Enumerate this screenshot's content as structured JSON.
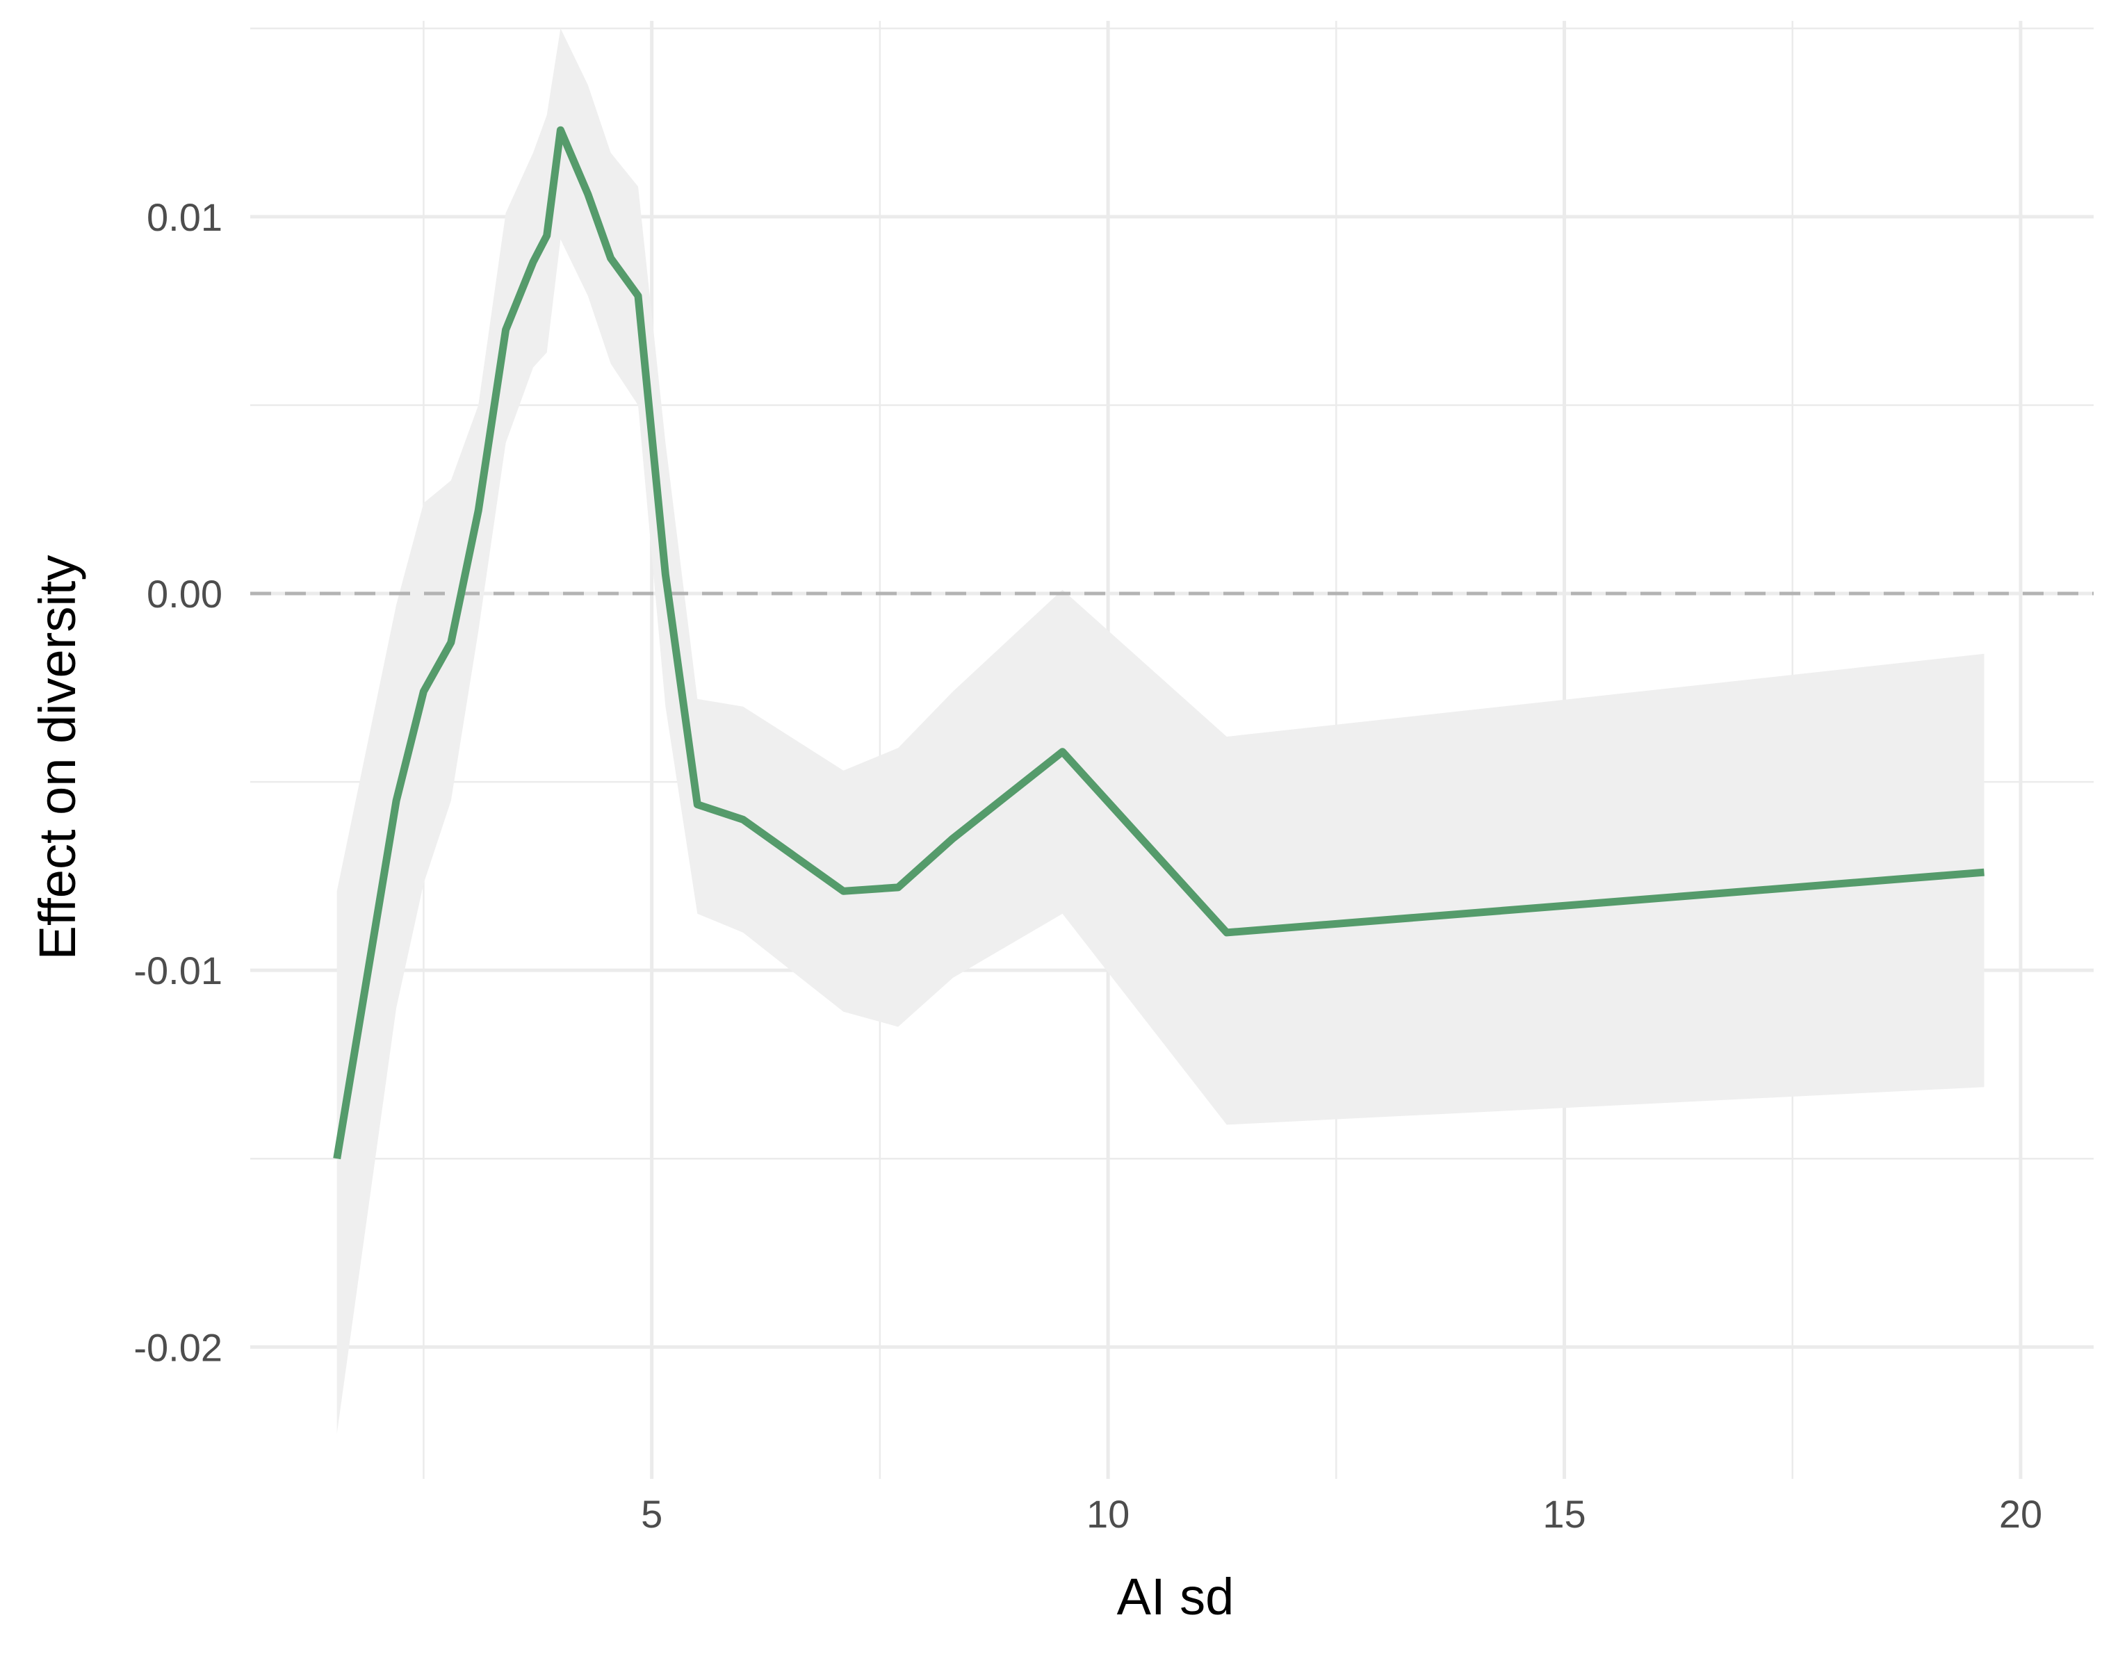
{
  "chart_data": {
    "type": "line",
    "xlabel": "AI sd",
    "ylabel": "Effect on diversity",
    "xlim": [
      0.6,
      20.8
    ],
    "ylim": [
      -0.0235,
      0.0152
    ],
    "x_ticks": [
      5,
      10,
      15,
      20
    ],
    "x_minor_ticks": [
      2.5,
      7.5,
      12.5,
      17.5
    ],
    "y_ticks": [
      -0.02,
      -0.01,
      0.0,
      0.01
    ],
    "y_tick_labels": [
      "-0.02",
      "-0.01",
      "0.00",
      "0.01"
    ],
    "y_minor_ticks": [
      -0.015,
      -0.005,
      0.005,
      0.015
    ],
    "grid": true,
    "reference_line": {
      "y": 0.0,
      "style": "dashed",
      "color": "#b3b3b3"
    },
    "series": [
      {
        "color": "#559b6b",
        "ribbon_color": "#efefef",
        "points": [
          {
            "x": 1.55,
            "y": -0.015,
            "lower": -0.0223,
            "upper": -0.0079
          },
          {
            "x": 2.2,
            "y": -0.0055,
            "lower": -0.011,
            "upper": -0.0003
          },
          {
            "x": 2.5,
            "y": -0.0026,
            "lower": -0.0077,
            "upper": 0.0024
          },
          {
            "x": 2.8,
            "y": -0.0013,
            "lower": -0.0055,
            "upper": 0.003
          },
          {
            "x": 3.1,
            "y": 0.0022,
            "lower": -0.001,
            "upper": 0.005
          },
          {
            "x": 3.4,
            "y": 0.007,
            "lower": 0.004,
            "upper": 0.0101
          },
          {
            "x": 3.7,
            "y": 0.0088,
            "lower": 0.006,
            "upper": 0.0117
          },
          {
            "x": 3.85,
            "y": 0.0095,
            "lower": 0.0064,
            "upper": 0.0127
          },
          {
            "x": 4.0,
            "y": 0.0123,
            "lower": 0.0094,
            "upper": 0.015
          },
          {
            "x": 4.3,
            "y": 0.0106,
            "lower": 0.0079,
            "upper": 0.0135
          },
          {
            "x": 4.55,
            "y": 0.0089,
            "lower": 0.0061,
            "upper": 0.0117
          },
          {
            "x": 4.85,
            "y": 0.0079,
            "lower": 0.005,
            "upper": 0.0108
          },
          {
            "x": 5.15,
            "y": 0.0005,
            "lower": -0.003,
            "upper": 0.004
          },
          {
            "x": 5.5,
            "y": -0.0056,
            "lower": -0.0085,
            "upper": -0.0028
          },
          {
            "x": 6.0,
            "y": -0.006,
            "lower": -0.009,
            "upper": -0.003
          },
          {
            "x": 7.1,
            "y": -0.0079,
            "lower": -0.0111,
            "upper": -0.0047
          },
          {
            "x": 7.7,
            "y": -0.0078,
            "lower": -0.0115,
            "upper": -0.0041
          },
          {
            "x": 8.3,
            "y": -0.0065,
            "lower": -0.0102,
            "upper": -0.0026
          },
          {
            "x": 9.5,
            "y": -0.0042,
            "lower": -0.0085,
            "upper": 0.0001
          },
          {
            "x": 11.3,
            "y": -0.009,
            "lower": -0.0141,
            "upper": -0.0038
          },
          {
            "x": 19.6,
            "y": -0.0074,
            "lower": -0.0131,
            "upper": -0.0016
          }
        ]
      }
    ]
  }
}
